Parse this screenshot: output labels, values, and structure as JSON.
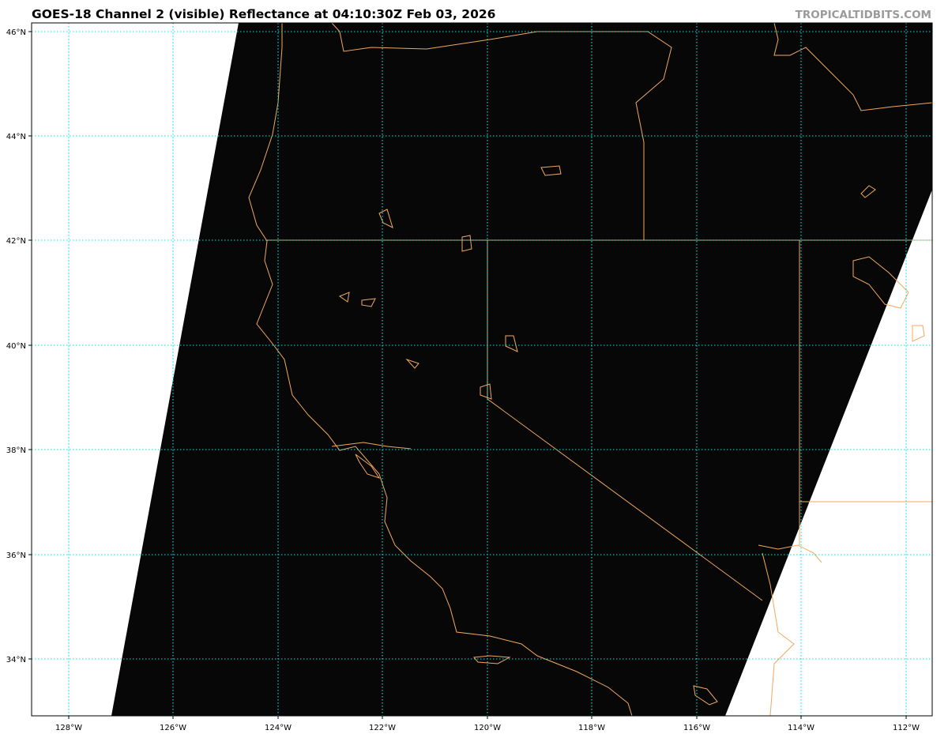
{
  "title": "GOES-18 Channel 2 (visible) Reflectance at 04:10:30Z Feb 03, 2026",
  "credit": "TROPICALTIDBITS.COM",
  "map": {
    "lon_ticks": [
      "128°W",
      "126°W",
      "124°W",
      "122°W",
      "120°W",
      "118°W",
      "116°W",
      "114°W",
      "112°W"
    ],
    "lat_ticks": [
      "46°N",
      "44°N",
      "42°N",
      "40°N",
      "38°N",
      "36°N",
      "34°N"
    ],
    "lon_values": [
      -128,
      -126,
      -124,
      -122,
      -120,
      -118,
      -116,
      -114,
      -112
    ],
    "lat_values": [
      46,
      44,
      42,
      40,
      38,
      36,
      34
    ],
    "lon_range": [
      -128.7,
      -111.5
    ],
    "lat_range": [
      32.9,
      46.2
    ],
    "gridlines": true,
    "colors": {
      "imagery": "#070707",
      "no_data": "#ffffff",
      "grid": "#00e5e5",
      "borders": "#f0a860"
    }
  }
}
